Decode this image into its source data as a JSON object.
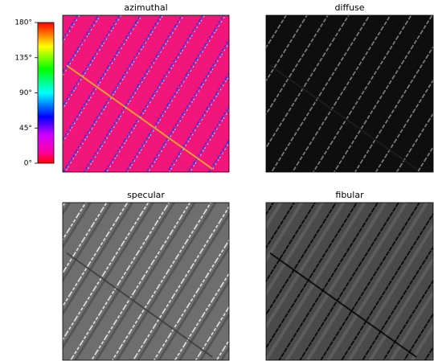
{
  "chart_data": [
    {
      "type": "image",
      "title": "azimuthal",
      "ylim": [
        0,
        180
      ],
      "yticks": [
        {
          "value": 0,
          "label": "0°"
        },
        {
          "value": 45,
          "label": "45°"
        },
        {
          "value": 90,
          "label": "90°"
        },
        {
          "value": 135,
          "label": "135°"
        },
        {
          "value": 180,
          "label": "180°"
        }
      ]
    },
    {
      "type": "image",
      "title": "diffuse"
    },
    {
      "type": "image",
      "title": "specular"
    },
    {
      "type": "image",
      "title": "fibular"
    }
  ]
}
